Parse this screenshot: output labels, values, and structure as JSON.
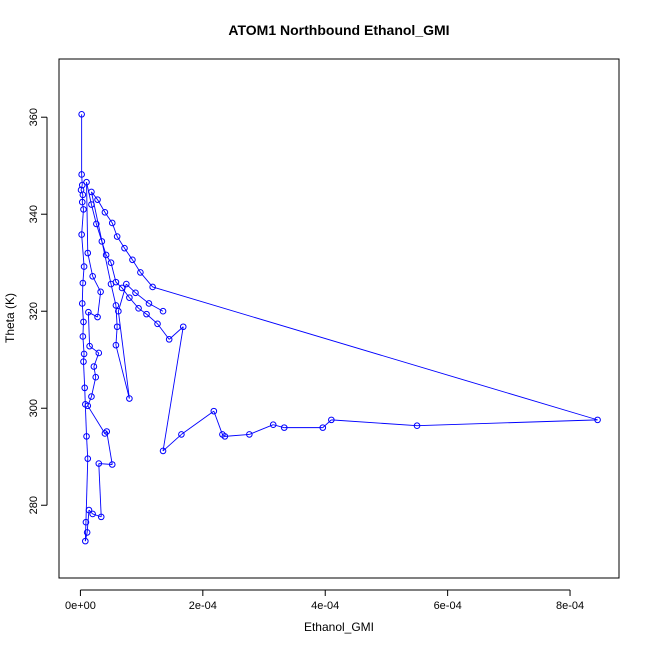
{
  "chart_data": {
    "type": "line",
    "title": "ATOM1 Northbound Ethanol_GMI",
    "xlabel": "Ethanol_GMI",
    "ylabel": "Theta (K)",
    "xlim": [
      -3.5e-05,
      0.00088
    ],
    "ylim": [
      265,
      372
    ],
    "x_ticks": [
      0,
      0.0002,
      0.0004,
      0.0006,
      0.0008
    ],
    "x_tick_labels": [
      "0e+00",
      "2e-04",
      "4e-04",
      "6e-04",
      "8e-04"
    ],
    "y_ticks": [
      280,
      300,
      320,
      340,
      360
    ],
    "y_tick_labels": [
      "280",
      "300",
      "320",
      "340",
      "360"
    ],
    "grid": false,
    "series": [
      {
        "color": "#0000ff",
        "marker": "open-circle",
        "points": [
          [
            2e-06,
            360.6
          ],
          [
            2e-06,
            348.2
          ],
          [
            3e-06,
            346.0
          ],
          [
            1e-06,
            345.0
          ],
          [
            4e-06,
            344.0
          ],
          [
            3e-06,
            342.5
          ],
          [
            5e-06,
            341.0
          ],
          [
            2e-06,
            335.8
          ],
          [
            6e-06,
            329.2
          ],
          [
            4e-06,
            325.8
          ],
          [
            3e-06,
            321.6
          ],
          [
            5e-06,
            317.8
          ],
          [
            4e-06,
            314.8
          ],
          [
            6e-06,
            311.2
          ],
          [
            5e-06,
            309.6
          ],
          [
            7e-06,
            304.2
          ],
          [
            8e-06,
            300.8
          ],
          [
            1e-05,
            294.2
          ],
          [
            1.2e-05,
            289.6
          ],
          [
            9e-06,
            276.5
          ],
          [
            8e-06,
            272.6
          ],
          [
            1.1e-05,
            274.4
          ],
          [
            1.4e-05,
            279.0
          ],
          [
            2e-05,
            278.2
          ],
          [
            3.4e-05,
            277.6
          ],
          [
            3e-05,
            288.6
          ],
          [
            5.2e-05,
            288.4
          ],
          [
            4.3e-05,
            295.2
          ],
          [
            4e-05,
            294.8
          ],
          [
            1.2e-05,
            300.5
          ],
          [
            1.8e-05,
            302.4
          ],
          [
            2.5e-05,
            306.4
          ],
          [
            2.2e-05,
            308.6
          ],
          [
            3e-05,
            311.4
          ],
          [
            1.5e-05,
            312.8
          ],
          [
            1.3e-05,
            319.8
          ],
          [
            2.8e-05,
            318.8
          ],
          [
            3.3e-05,
            324.0
          ],
          [
            2e-05,
            327.2
          ],
          [
            1.2e-05,
            332.0
          ],
          [
            1e-05,
            346.6
          ],
          [
            1.8e-05,
            342.0
          ],
          [
            2.6e-05,
            338.0
          ],
          [
            3.5e-05,
            334.4
          ],
          [
            4.2e-05,
            331.6
          ],
          [
            5e-05,
            330.0
          ],
          [
            5.8e-05,
            326.0
          ],
          [
            6.8e-05,
            324.8
          ],
          [
            8e-05,
            322.8
          ],
          [
            9.5e-05,
            320.6
          ],
          [
            0.000108,
            319.4
          ],
          [
            0.000126,
            317.4
          ],
          [
            0.000145,
            314.2
          ],
          [
            0.000168,
            316.8
          ],
          [
            0.000135,
            291.2
          ],
          [
            0.000165,
            294.6
          ],
          [
            0.000218,
            299.4
          ],
          [
            0.000232,
            294.6
          ],
          [
            0.000236,
            294.2
          ],
          [
            0.000276,
            294.6
          ],
          [
            0.000315,
            296.6
          ],
          [
            0.000333,
            296.0
          ],
          [
            0.000396,
            296.0
          ],
          [
            0.00041,
            297.6
          ],
          [
            0.00055,
            296.4
          ],
          [
            0.000845,
            297.6
          ],
          [
            0.000118,
            325.0
          ],
          [
            9.8e-05,
            328.0
          ],
          [
            8.5e-05,
            330.6
          ],
          [
            7.2e-05,
            333.0
          ],
          [
            6e-05,
            335.4
          ],
          [
            5.2e-05,
            338.2
          ],
          [
            4e-05,
            340.4
          ],
          [
            2.8e-05,
            343.0
          ],
          [
            1.8e-05,
            344.6
          ],
          [
            5e-05,
            325.6
          ],
          [
            5.8e-05,
            321.2
          ],
          [
            6e-05,
            316.8
          ],
          [
            5.8e-05,
            313.0
          ],
          [
            8e-05,
            302.0
          ],
          [
            6.2e-05,
            320.0
          ],
          [
            7.5e-05,
            325.6
          ],
          [
            9e-05,
            323.8
          ],
          [
            0.000112,
            321.6
          ],
          [
            0.000135,
            320.0
          ]
        ]
      }
    ]
  }
}
